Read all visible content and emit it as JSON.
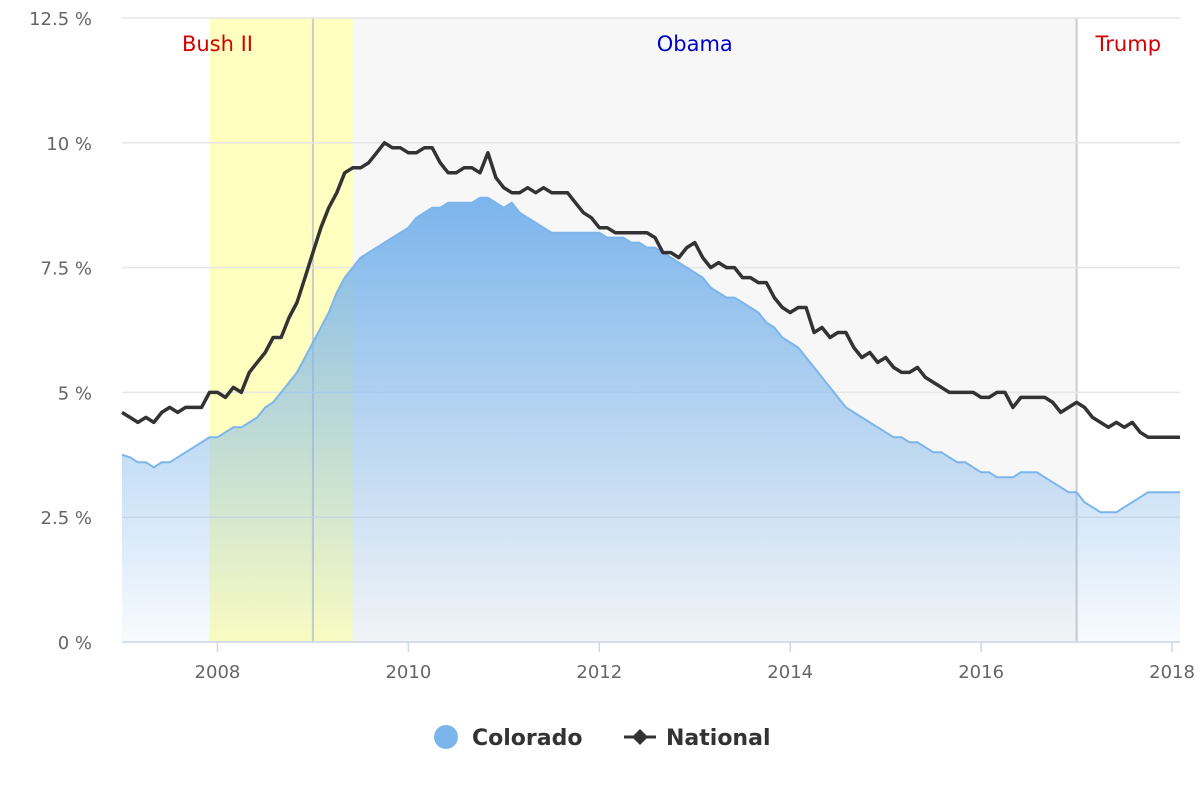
{
  "chart_data": {
    "type": "area",
    "title": "",
    "xlabel": "",
    "ylabel": "",
    "ylim": [
      0,
      12.5
    ],
    "xlim": [
      "2007-01",
      "2018-02"
    ],
    "y_ticks": [
      "0 %",
      "2.5 %",
      "5 %",
      "7.5 %",
      "10 %",
      "12.5 %"
    ],
    "x_ticks": [
      "2008",
      "2010",
      "2012",
      "2014",
      "2016",
      "2018"
    ],
    "grid": true,
    "legend_position": "bottom-center",
    "presidencies": [
      {
        "name": "Bush II",
        "start": "2007-01",
        "end": "2009-01",
        "color": "#d40000"
      },
      {
        "name": "Obama",
        "start": "2009-01",
        "end": "2017-01",
        "color": "#0000cc"
      },
      {
        "name": "Trump",
        "start": "2017-01",
        "end": "2018-02",
        "color": "#d40000"
      }
    ],
    "recession": {
      "start": "2007-12",
      "end": "2009-06",
      "color": "#ffffc0"
    },
    "x": [
      "2007-01",
      "2007-02",
      "2007-03",
      "2007-04",
      "2007-05",
      "2007-06",
      "2007-07",
      "2007-08",
      "2007-09",
      "2007-10",
      "2007-11",
      "2007-12",
      "2008-01",
      "2008-02",
      "2008-03",
      "2008-04",
      "2008-05",
      "2008-06",
      "2008-07",
      "2008-08",
      "2008-09",
      "2008-10",
      "2008-11",
      "2008-12",
      "2009-01",
      "2009-02",
      "2009-03",
      "2009-04",
      "2009-05",
      "2009-06",
      "2009-07",
      "2009-08",
      "2009-09",
      "2009-10",
      "2009-11",
      "2009-12",
      "2010-01",
      "2010-02",
      "2010-03",
      "2010-04",
      "2010-05",
      "2010-06",
      "2010-07",
      "2010-08",
      "2010-09",
      "2010-10",
      "2010-11",
      "2010-12",
      "2011-01",
      "2011-02",
      "2011-03",
      "2011-04",
      "2011-05",
      "2011-06",
      "2011-07",
      "2011-08",
      "2011-09",
      "2011-10",
      "2011-11",
      "2011-12",
      "2012-01",
      "2012-02",
      "2012-03",
      "2012-04",
      "2012-05",
      "2012-06",
      "2012-07",
      "2012-08",
      "2012-09",
      "2012-10",
      "2012-11",
      "2012-12",
      "2013-01",
      "2013-02",
      "2013-03",
      "2013-04",
      "2013-05",
      "2013-06",
      "2013-07",
      "2013-08",
      "2013-09",
      "2013-10",
      "2013-11",
      "2013-12",
      "2014-01",
      "2014-02",
      "2014-03",
      "2014-04",
      "2014-05",
      "2014-06",
      "2014-07",
      "2014-08",
      "2014-09",
      "2014-10",
      "2014-11",
      "2014-12",
      "2015-01",
      "2015-02",
      "2015-03",
      "2015-04",
      "2015-05",
      "2015-06",
      "2015-07",
      "2015-08",
      "2015-09",
      "2015-10",
      "2015-11",
      "2015-12",
      "2016-01",
      "2016-02",
      "2016-03",
      "2016-04",
      "2016-05",
      "2016-06",
      "2016-07",
      "2016-08",
      "2016-09",
      "2016-10",
      "2016-11",
      "2016-12",
      "2017-01",
      "2017-02",
      "2017-03",
      "2017-04",
      "2017-05",
      "2017-06",
      "2017-07",
      "2017-08",
      "2017-09",
      "2017-10",
      "2017-11",
      "2017-12",
      "2018-01",
      "2018-02"
    ],
    "series": [
      {
        "name": "Colorado",
        "kind": "area",
        "color": "#7cb5ec",
        "values": [
          3.75,
          3.7,
          3.6,
          3.6,
          3.5,
          3.6,
          3.6,
          3.7,
          3.8,
          3.9,
          4.0,
          4.1,
          4.1,
          4.2,
          4.3,
          4.3,
          4.4,
          4.5,
          4.7,
          4.8,
          5.0,
          5.2,
          5.4,
          5.7,
          6.0,
          6.3,
          6.6,
          7.0,
          7.3,
          7.5,
          7.7,
          7.8,
          7.9,
          8.0,
          8.1,
          8.2,
          8.3,
          8.5,
          8.6,
          8.7,
          8.7,
          8.8,
          8.8,
          8.8,
          8.8,
          8.9,
          8.9,
          8.8,
          8.7,
          8.8,
          8.6,
          8.5,
          8.4,
          8.3,
          8.2,
          8.2,
          8.2,
          8.2,
          8.2,
          8.2,
          8.2,
          8.1,
          8.1,
          8.1,
          8.0,
          8.0,
          7.9,
          7.9,
          7.8,
          7.7,
          7.6,
          7.5,
          7.4,
          7.3,
          7.1,
          7.0,
          6.9,
          6.9,
          6.8,
          6.7,
          6.6,
          6.4,
          6.3,
          6.1,
          6.0,
          5.9,
          5.7,
          5.5,
          5.3,
          5.1,
          4.9,
          4.7,
          4.6,
          4.5,
          4.4,
          4.3,
          4.2,
          4.1,
          4.1,
          4.0,
          4.0,
          3.9,
          3.8,
          3.8,
          3.7,
          3.6,
          3.6,
          3.5,
          3.4,
          3.4,
          3.3,
          3.3,
          3.3,
          3.4,
          3.4,
          3.4,
          3.3,
          3.2,
          3.1,
          3.0,
          3.0,
          2.8,
          2.7,
          2.6,
          2.6,
          2.6,
          2.7,
          2.8,
          2.9,
          3.0,
          3.0,
          3.0,
          3.0,
          3.0
        ]
      },
      {
        "name": "National",
        "kind": "line",
        "color": "#333333",
        "values": [
          4.6,
          4.5,
          4.4,
          4.5,
          4.4,
          4.6,
          4.7,
          4.6,
          4.7,
          4.7,
          4.7,
          5.0,
          5.0,
          4.9,
          5.1,
          5.0,
          5.4,
          5.6,
          5.8,
          6.1,
          6.1,
          6.5,
          6.8,
          7.3,
          7.8,
          8.3,
          8.7,
          9.0,
          9.4,
          9.5,
          9.5,
          9.6,
          9.8,
          10.0,
          9.9,
          9.9,
          9.8,
          9.8,
          9.9,
          9.9,
          9.6,
          9.4,
          9.4,
          9.5,
          9.5,
          9.4,
          9.8,
          9.3,
          9.1,
          9.0,
          9.0,
          9.1,
          9.0,
          9.1,
          9.0,
          9.0,
          9.0,
          8.8,
          8.6,
          8.5,
          8.3,
          8.3,
          8.2,
          8.2,
          8.2,
          8.2,
          8.2,
          8.1,
          7.8,
          7.8,
          7.7,
          7.9,
          8.0,
          7.7,
          7.5,
          7.6,
          7.5,
          7.5,
          7.3,
          7.3,
          7.2,
          7.2,
          6.9,
          6.7,
          6.6,
          6.7,
          6.7,
          6.2,
          6.3,
          6.1,
          6.2,
          6.2,
          5.9,
          5.7,
          5.8,
          5.6,
          5.7,
          5.5,
          5.4,
          5.4,
          5.5,
          5.3,
          5.2,
          5.1,
          5.0,
          5.0,
          5.0,
          5.0,
          4.9,
          4.9,
          5.0,
          5.0,
          4.7,
          4.9,
          4.9,
          4.9,
          4.9,
          4.8,
          4.6,
          4.7,
          4.8,
          4.7,
          4.5,
          4.4,
          4.3,
          4.4,
          4.3,
          4.4,
          4.2,
          4.1,
          4.1,
          4.1,
          4.1,
          4.1
        ]
      }
    ],
    "legend": {
      "colorado_label": "Colorado",
      "national_label": "National"
    }
  }
}
